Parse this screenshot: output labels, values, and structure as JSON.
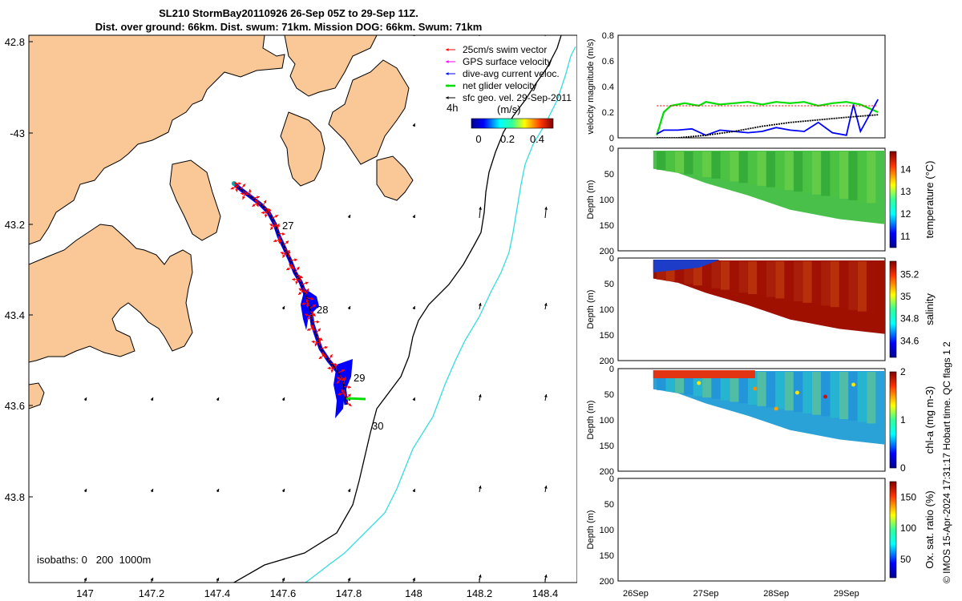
{
  "title": {
    "line1": "SL210 StormBay20110926 26-Sep 05Z to 29-Sep 11Z.",
    "line2": "Dist. over ground: 66km. Dist. swum: 71km. Mission DOG: 66km. Swum: 71km"
  },
  "map": {
    "lon_ticks": [
      "147",
      "147.2",
      "147.4",
      "147.6",
      "147.8",
      "148",
      "148.2",
      "148.4"
    ],
    "lat_ticks": [
      "42.8",
      "-43",
      "43.2",
      "43.4",
      "43.6",
      "43.8"
    ],
    "isobath_note": "isobaths: 0   200  1000m",
    "colorbar_label": "(m/s)",
    "colorbar_ticks": [
      "0",
      "0.2",
      "0.4"
    ],
    "time_scale_label": "4h",
    "legend": [
      {
        "label": "25cm/s swim vector",
        "color": "#ff0000"
      },
      {
        "label": "GPS surface velocity",
        "color": "#ff00ff"
      },
      {
        "label": "dive-avg current veloc.",
        "color": "#0000ff"
      },
      {
        "label": "net glider velocity",
        "color": "#00dd00"
      },
      {
        "label": "sfc geo. vel. 29-Sep-2011",
        "color": "#000000"
      }
    ],
    "day_labels": [
      "27",
      "28",
      "29",
      "30"
    ],
    "land_color": "#f9c896",
    "track_color": "#0000ff",
    "swim_color": "#ff0000"
  },
  "chart_data": [
    {
      "type": "line",
      "ylabel": "velocity magnitude (m/s)",
      "ylim": [
        0,
        0.8
      ],
      "yticks": [
        "0",
        "0.2",
        "0.4",
        "0.6",
        "0.8"
      ],
      "x": [
        "26Sep",
        "27Sep",
        "28Sep",
        "29Sep"
      ],
      "series": [
        {
          "color": "#00dd00",
          "values_desc": "swim speed",
          "x": [
            26.3,
            26.4,
            26.5,
            26.7,
            26.9,
            27.0,
            27.2,
            27.4,
            27.6,
            27.8,
            28.0,
            28.2,
            28.4,
            28.6,
            28.8,
            29.0,
            29.2,
            29.45
          ],
          "y": [
            0.02,
            0.2,
            0.25,
            0.27,
            0.25,
            0.28,
            0.26,
            0.27,
            0.28,
            0.26,
            0.28,
            0.27,
            0.28,
            0.25,
            0.27,
            0.28,
            0.26,
            0.2
          ]
        },
        {
          "color": "#0000ff",
          "values_desc": "dive-avg current",
          "x": [
            26.3,
            26.4,
            26.6,
            26.8,
            27.0,
            27.2,
            27.4,
            27.6,
            27.8,
            28.0,
            28.2,
            28.4,
            28.6,
            28.8,
            29.0,
            29.1,
            29.2,
            29.3,
            29.45
          ],
          "y": [
            0.03,
            0.06,
            0.06,
            0.07,
            0.02,
            0.06,
            0.05,
            0.04,
            0.05,
            0.08,
            0.06,
            0.05,
            0.12,
            0.04,
            0.02,
            0.26,
            0.05,
            0.15,
            0.3
          ]
        },
        {
          "color": "#000000",
          "values_desc": "net velocity",
          "x": [
            26.3,
            26.6,
            27.0,
            27.4,
            27.8,
            28.2,
            28.6,
            29.0,
            29.45
          ],
          "y": [
            0.0,
            0.0,
            0.02,
            0.05,
            0.09,
            0.12,
            0.14,
            0.16,
            0.18
          ]
        },
        {
          "color": "#ff0000",
          "values_desc": "25cm/s reference",
          "x": [
            26.3,
            29.45
          ],
          "y": [
            0.25,
            0.25
          ]
        }
      ]
    },
    {
      "type": "heatmap",
      "ylabel": "Depth (m)",
      "clabel": "temperature (°C)",
      "cticks": [
        "11",
        "12",
        "13",
        "14"
      ],
      "crange": [
        10.5,
        14.8
      ],
      "yticks": [
        "0",
        "50",
        "100",
        "150",
        "200"
      ]
    },
    {
      "type": "heatmap",
      "ylabel": "Depth (m)",
      "clabel": "salinity",
      "cticks": [
        "34.6",
        "34.8",
        "35",
        "35.2"
      ],
      "crange": [
        34.45,
        35.32
      ],
      "yticks": [
        "0",
        "50",
        "100",
        "150",
        "200"
      ]
    },
    {
      "type": "heatmap",
      "ylabel": "Depth (m)",
      "clabel": "chl-a (mg m-3)",
      "cticks": [
        "0",
        "1",
        "2"
      ],
      "crange": [
        0,
        2
      ],
      "yticks": [
        "0",
        "50",
        "100",
        "150",
        "200"
      ]
    },
    {
      "type": "heatmap",
      "ylabel": "Depth (m)",
      "clabel": "Ox. sat. ratio (%)",
      "cticks": [
        "50",
        "100",
        "150"
      ],
      "crange": [
        20,
        175
      ],
      "yticks": [
        "0",
        "50",
        "100",
        "150",
        "200"
      ]
    }
  ],
  "xticks": [
    "26Sep",
    "27Sep",
    "28Sep",
    "29Sep"
  ],
  "footer_note": "© IMOS 15-Apr-2024 17:31:17 Hobart time. QC flags 1  2"
}
